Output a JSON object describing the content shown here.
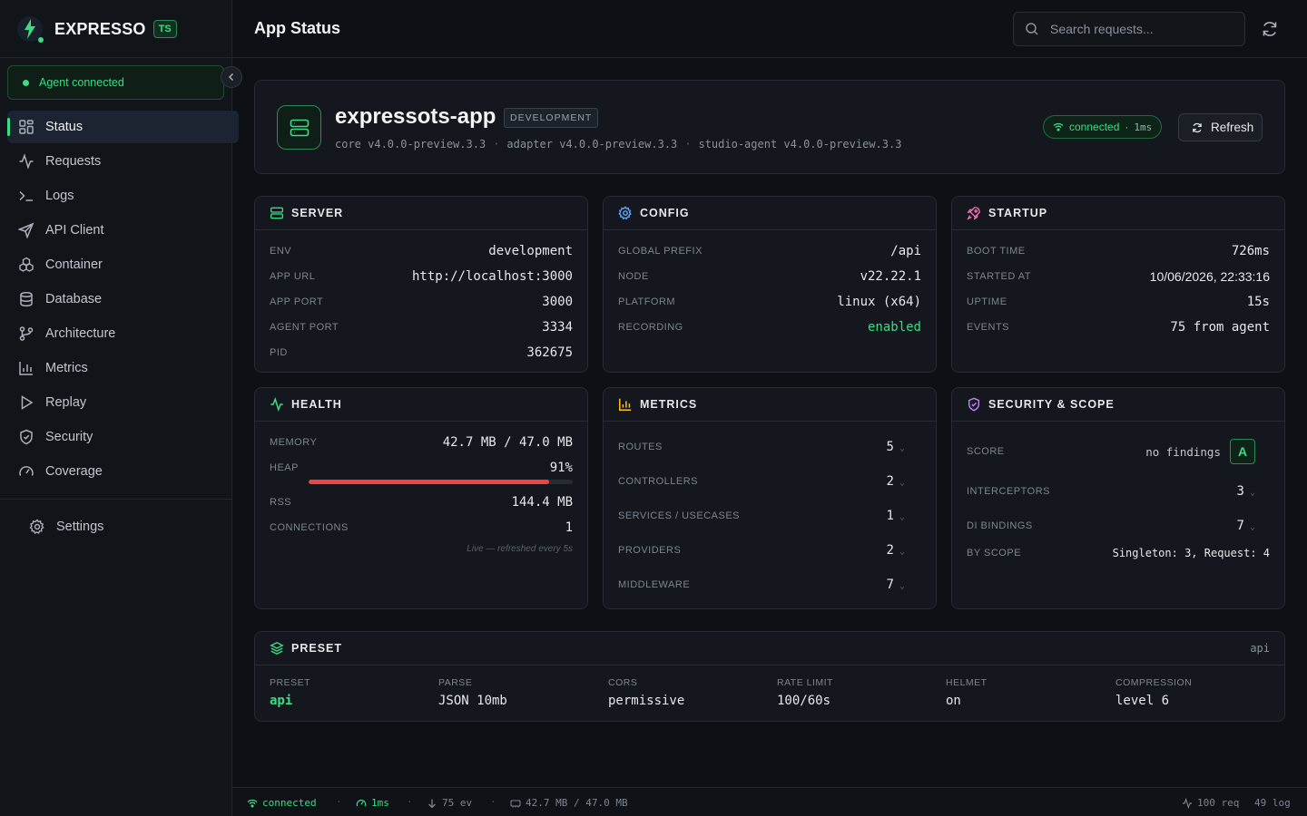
{
  "brand": {
    "name": "EXPRESSO",
    "badge": "TS"
  },
  "agent": {
    "status": "Agent connected"
  },
  "nav": [
    {
      "label": "Status",
      "icon": "grid-icon",
      "active": true
    },
    {
      "label": "Requests",
      "icon": "activity-icon"
    },
    {
      "label": "Logs",
      "icon": "terminal-icon"
    },
    {
      "label": "API Client",
      "icon": "send-icon"
    },
    {
      "label": "Container",
      "icon": "cubes-icon"
    },
    {
      "label": "Database",
      "icon": "database-icon"
    },
    {
      "label": "Architecture",
      "icon": "git-branch-icon"
    },
    {
      "label": "Metrics",
      "icon": "bar-chart-icon"
    },
    {
      "label": "Replay",
      "icon": "play-icon"
    },
    {
      "label": "Security",
      "icon": "shield-icon"
    },
    {
      "label": "Coverage",
      "icon": "gauge-icon"
    }
  ],
  "settings": {
    "label": "Settings"
  },
  "header": {
    "title": "App Status",
    "search_placeholder": "Search requests..."
  },
  "app": {
    "name": "expressots-app",
    "env_badge": "DEVELOPMENT",
    "core": "core v4.0.0-preview.3.3",
    "adapter": "adapter v4.0.0-preview.3.3",
    "studio_agent": "studio-agent v4.0.0-preview.3.3",
    "connection": "connected",
    "latency": "1ms",
    "refresh_label": "Refresh"
  },
  "server": {
    "title": "SERVER",
    "rows": [
      {
        "k": "ENV",
        "v": "development"
      },
      {
        "k": "APP URL",
        "v": "http://localhost:3000"
      },
      {
        "k": "APP PORT",
        "v": "3000"
      },
      {
        "k": "AGENT PORT",
        "v": "3334"
      },
      {
        "k": "PID",
        "v": "362675"
      }
    ]
  },
  "config": {
    "title": "CONFIG",
    "rows": [
      {
        "k": "GLOBAL PREFIX",
        "v": "/api"
      },
      {
        "k": "NODE",
        "v": "v22.22.1"
      },
      {
        "k": "PLATFORM",
        "v": "linux (x64)"
      },
      {
        "k": "RECORDING",
        "v": "enabled"
      }
    ]
  },
  "startup": {
    "title": "STARTUP",
    "rows": [
      {
        "k": "BOOT TIME",
        "v": "726ms"
      },
      {
        "k": "STARTED AT",
        "v": "10/06/2026, 22:33:16"
      },
      {
        "k": "UPTIME",
        "v": "15s"
      },
      {
        "k": "EVENTS",
        "v": "75 from agent"
      }
    ]
  },
  "health": {
    "title": "HEALTH",
    "memory_label": "MEMORY",
    "memory": "42.7 MB / 47.0 MB",
    "heap_label": "HEAP",
    "heap": "91%",
    "heap_fraction": 0.91,
    "rss_label": "RSS",
    "rss": "144.4 MB",
    "connections_label": "CONNECTIONS",
    "connections": "1",
    "note": "Live — refreshed every 5s"
  },
  "metrics": {
    "title": "METRICS",
    "rows": [
      {
        "k": "ROUTES",
        "v": "5"
      },
      {
        "k": "CONTROLLERS",
        "v": "2"
      },
      {
        "k": "SERVICES / USECASES",
        "v": "1"
      },
      {
        "k": "PROVIDERS",
        "v": "2"
      },
      {
        "k": "MIDDLEWARE",
        "v": "7"
      }
    ]
  },
  "security": {
    "title": "SECURITY & SCOPE",
    "score_label": "SCORE",
    "findings": "no findings",
    "grade": "A",
    "interceptors_label": "INTERCEPTORS",
    "interceptors": "3",
    "di_label": "DI BINDINGS",
    "di": "7",
    "scope_label": "BY SCOPE",
    "scope": "Singleton: 3, Request: 4"
  },
  "preset": {
    "title": "PRESET",
    "tag": "api",
    "cols": [
      {
        "k": "PRESET",
        "v": "api"
      },
      {
        "k": "PARSE",
        "v": "JSON 10mb"
      },
      {
        "k": "CORS",
        "v": "permissive"
      },
      {
        "k": "RATE LIMIT",
        "v": "100/60s"
      },
      {
        "k": "HELMET",
        "v": "on"
      },
      {
        "k": "COMPRESSION",
        "v": "level 6"
      }
    ]
  },
  "statusbar": {
    "connection": "connected",
    "latency": "1ms",
    "events": "75 ev",
    "memory": "42.7 MB / 47.0 MB",
    "requests": "100 req",
    "logs": "49 log"
  },
  "colors": {
    "accent": "#3ddc84",
    "danger": "#ef4444",
    "background": "#0d1014"
  }
}
